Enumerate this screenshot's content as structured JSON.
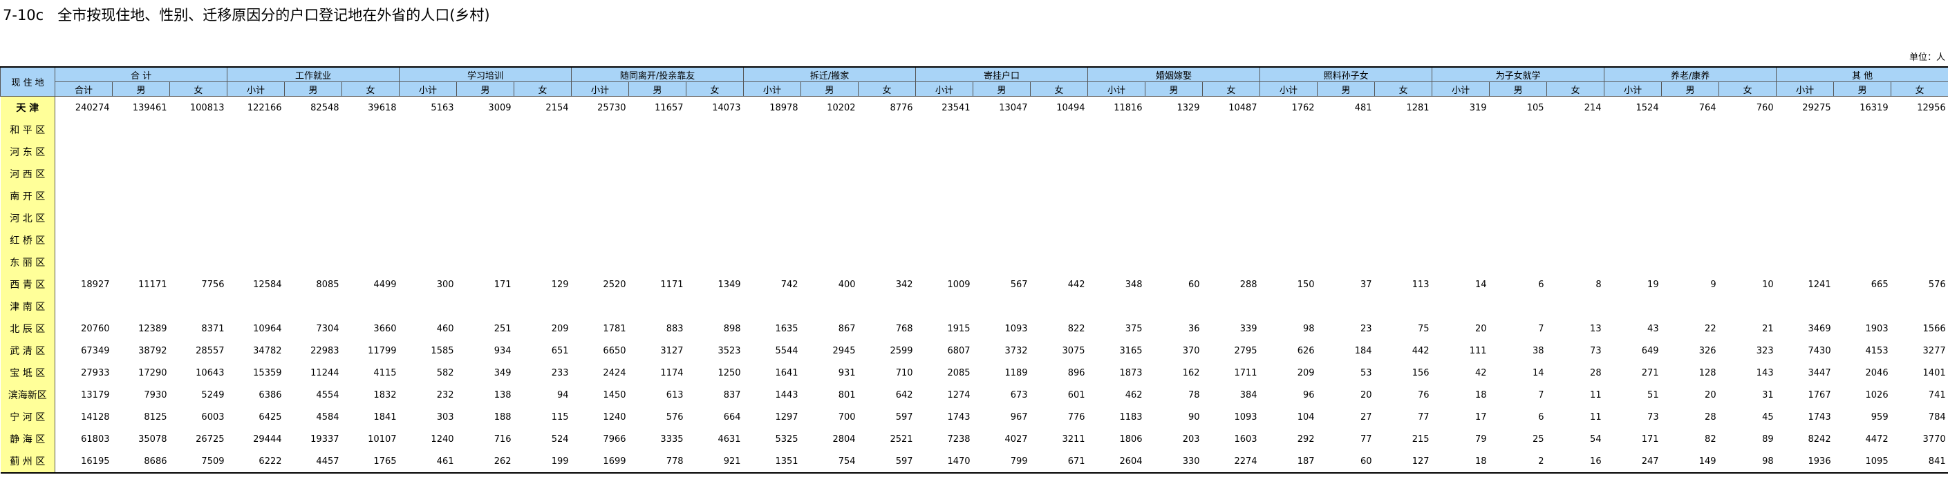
{
  "header": {
    "title": "7-10c   全市按现住地、性别、迁移原因分的户口登记地在外省的人口(乡村)",
    "unit": "单位：人"
  },
  "table": {
    "corner": "现 住 地",
    "groups": [
      {
        "name": "合    计",
        "sub": [
          "合计",
          "男",
          "女"
        ]
      },
      {
        "name": "工作就业",
        "sub": [
          "小计",
          "男",
          "女"
        ]
      },
      {
        "name": "学习培训",
        "sub": [
          "小计",
          "男",
          "女"
        ]
      },
      {
        "name": "随同离开/投亲靠友",
        "sub": [
          "小计",
          "男",
          "女"
        ]
      },
      {
        "name": "拆迁/搬家",
        "sub": [
          "小计",
          "男",
          "女"
        ]
      },
      {
        "name": "寄挂户口",
        "sub": [
          "小计",
          "男",
          "女"
        ]
      },
      {
        "name": "婚姻嫁娶",
        "sub": [
          "小计",
          "男",
          "女"
        ]
      },
      {
        "name": "照料孙子女",
        "sub": [
          "小计",
          "男",
          "女"
        ]
      },
      {
        "name": "为子女就学",
        "sub": [
          "小计",
          "男",
          "女"
        ]
      },
      {
        "name": "养老/康养",
        "sub": [
          "小计",
          "男",
          "女"
        ]
      },
      {
        "name": "其    他",
        "sub": [
          "小计",
          "男",
          "女"
        ]
      }
    ],
    "rows": [
      {
        "name": "天    津",
        "values": [
          240274,
          139461,
          100813,
          122166,
          82548,
          39618,
          5163,
          3009,
          2154,
          25730,
          11657,
          14073,
          18978,
          10202,
          8776,
          23541,
          13047,
          10494,
          11816,
          1329,
          10487,
          1762,
          481,
          1281,
          319,
          105,
          214,
          1524,
          764,
          760,
          29275,
          16319,
          12956
        ]
      },
      {
        "name": "和 平 区",
        "values": []
      },
      {
        "name": "河 东 区",
        "values": []
      },
      {
        "name": "河 西 区",
        "values": []
      },
      {
        "name": "南 开 区",
        "values": []
      },
      {
        "name": "河 北 区",
        "values": []
      },
      {
        "name": "红 桥 区",
        "values": []
      },
      {
        "name": "东 丽 区",
        "values": []
      },
      {
        "name": "西 青 区",
        "values": [
          18927,
          11171,
          7756,
          12584,
          8085,
          4499,
          300,
          171,
          129,
          2520,
          1171,
          1349,
          742,
          400,
          342,
          1009,
          567,
          442,
          348,
          60,
          288,
          150,
          37,
          113,
          14,
          6,
          8,
          19,
          9,
          10,
          1241,
          665,
          576
        ]
      },
      {
        "name": "津 南 区",
        "values": []
      },
      {
        "name": "北 辰 区",
        "values": [
          20760,
          12389,
          8371,
          10964,
          7304,
          3660,
          460,
          251,
          209,
          1781,
          883,
          898,
          1635,
          867,
          768,
          1915,
          1093,
          822,
          375,
          36,
          339,
          98,
          23,
          75,
          20,
          7,
          13,
          43,
          22,
          21,
          3469,
          1903,
          1566
        ]
      },
      {
        "name": "武 清 区",
        "values": [
          67349,
          38792,
          28557,
          34782,
          22983,
          11799,
          1585,
          934,
          651,
          6650,
          3127,
          3523,
          5544,
          2945,
          2599,
          6807,
          3732,
          3075,
          3165,
          370,
          2795,
          626,
          184,
          442,
          111,
          38,
          73,
          649,
          326,
          323,
          7430,
          4153,
          3277
        ]
      },
      {
        "name": "宝 坻 区",
        "values": [
          27933,
          17290,
          10643,
          15359,
          11244,
          4115,
          582,
          349,
          233,
          2424,
          1174,
          1250,
          1641,
          931,
          710,
          2085,
          1189,
          896,
          1873,
          162,
          1711,
          209,
          53,
          156,
          42,
          14,
          28,
          271,
          128,
          143,
          3447,
          2046,
          1401
        ]
      },
      {
        "name": "滨海新区",
        "values": [
          13179,
          7930,
          5249,
          6386,
          4554,
          1832,
          232,
          138,
          94,
          1450,
          613,
          837,
          1443,
          801,
          642,
          1274,
          673,
          601,
          462,
          78,
          384,
          96,
          20,
          76,
          18,
          7,
          11,
          51,
          20,
          31,
          1767,
          1026,
          741
        ]
      },
      {
        "name": "宁 河 区",
        "values": [
          14128,
          8125,
          6003,
          6425,
          4584,
          1841,
          303,
          188,
          115,
          1240,
          576,
          664,
          1297,
          700,
          597,
          1743,
          967,
          776,
          1183,
          90,
          1093,
          104,
          27,
          77,
          17,
          6,
          11,
          73,
          28,
          45,
          1743,
          959,
          784
        ]
      },
      {
        "name": "静 海 区",
        "values": [
          61803,
          35078,
          26725,
          29444,
          19337,
          10107,
          1240,
          716,
          524,
          7966,
          3335,
          4631,
          5325,
          2804,
          2521,
          7238,
          4027,
          3211,
          1806,
          203,
          1603,
          292,
          77,
          215,
          79,
          25,
          54,
          171,
          82,
          89,
          8242,
          4472,
          3770
        ]
      },
      {
        "name": "蓟 州 区",
        "values": [
          16195,
          8686,
          7509,
          6222,
          4457,
          1765,
          461,
          262,
          199,
          1699,
          778,
          921,
          1351,
          754,
          597,
          1470,
          799,
          671,
          2604,
          330,
          2274,
          187,
          60,
          127,
          18,
          2,
          16,
          247,
          149,
          98,
          1936,
          1095,
          841
        ]
      }
    ]
  }
}
